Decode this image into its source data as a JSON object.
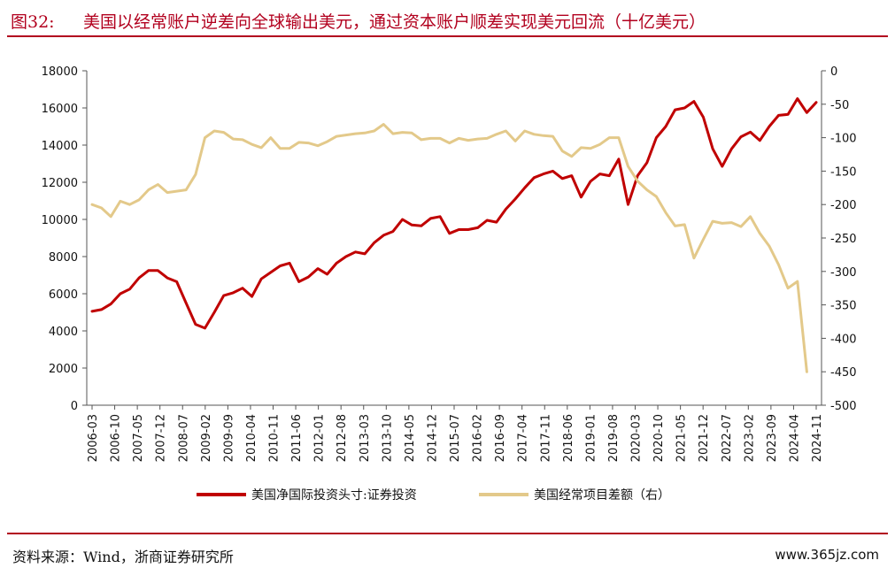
{
  "header": {
    "figure_label": "图32:",
    "title": "美国以经常账户逆差向全球输出美元，通过资本账户顺差实现美元回流（十亿美元）"
  },
  "footer": {
    "source": "资料来源：Wind，浙商证券研究所",
    "watermark": "www.365jz.com"
  },
  "colors": {
    "accent": "#b2001e",
    "series1": "#c00000",
    "series2": "#e3c98a"
  },
  "chart_data": {
    "type": "line",
    "x_tick_labels": [
      "2006-03",
      "2006-10",
      "2007-05",
      "2007-12",
      "2008-07",
      "2009-02",
      "2009-09",
      "2010-04",
      "2010-11",
      "2011-06",
      "2012-01",
      "2012-08",
      "2013-03",
      "2013-10",
      "2014-05",
      "2014-12",
      "2015-07",
      "2016-02",
      "2016-09",
      "2017-04",
      "2017-11",
      "2018-06",
      "2019-01",
      "2019-08",
      "2020-03",
      "2020-10",
      "2021-05",
      "2021-12",
      "2022-07",
      "2023-02",
      "2023-09",
      "2024-04",
      "2024-11"
    ],
    "quarters_start": "2006-Q1",
    "left_axis": {
      "min": 0,
      "max": 18000,
      "ticks": [
        0,
        2000,
        4000,
        6000,
        8000,
        10000,
        12000,
        14000,
        16000,
        18000
      ]
    },
    "right_axis": {
      "min": -500,
      "max": 0,
      "ticks": [
        0,
        -50,
        -100,
        -150,
        -200,
        -250,
        -300,
        -350,
        -400,
        -450,
        -500
      ]
    },
    "grid": false,
    "legend_position": "bottom",
    "series": [
      {
        "name": "美国净国际投资头寸:证券投资",
        "axis": "left",
        "color": "#c00000",
        "values": [
          5050,
          5150,
          5450,
          6000,
          6250,
          6850,
          7250,
          7250,
          6850,
          6650,
          5500,
          4350,
          4150,
          5000,
          5900,
          6050,
          6300,
          5850,
          6800,
          7150,
          7500,
          7650,
          6650,
          6900,
          7350,
          7050,
          7650,
          8000,
          8250,
          8150,
          8750,
          9150,
          9350,
          10000,
          9700,
          9650,
          10050,
          10150,
          9250,
          9450,
          9450,
          9550,
          9950,
          9850,
          10550,
          11100,
          11700,
          12250,
          12450,
          12600,
          12200,
          12350,
          11200,
          12050,
          12450,
          12350,
          13250,
          10800,
          12350,
          13050,
          14400,
          15000,
          15900,
          16000,
          16350,
          15500,
          13800,
          12850,
          13800,
          14450,
          14700,
          14250,
          15000,
          15600,
          15650,
          16500,
          15750,
          16300
        ]
      },
      {
        "name": "美国经常项目差额（右）",
        "axis": "right",
        "color": "#e3c98a",
        "values": [
          -200,
          -205,
          -218,
          -195,
          -200,
          -193,
          -178,
          -170,
          -182,
          -180,
          -178,
          -155,
          -100,
          -90,
          -92,
          -102,
          -103,
          -110,
          -115,
          -100,
          -116,
          -116,
          -107,
          -108,
          -112,
          -106,
          -98,
          -96,
          -94,
          -93,
          -90,
          -80,
          -94,
          -92,
          -93,
          -103,
          -101,
          -101,
          -108,
          -101,
          -104,
          -102,
          -101,
          -95,
          -90,
          -105,
          -90,
          -95,
          -97,
          -98,
          -120,
          -128,
          -115,
          -116,
          -110,
          -100,
          -100,
          -143,
          -165,
          -178,
          -188,
          -212,
          -232,
          -230,
          -280,
          -252,
          -225,
          -228,
          -227,
          -233,
          -218,
          -243,
          -262,
          -290,
          -325,
          -315,
          -450
        ]
      }
    ]
  }
}
